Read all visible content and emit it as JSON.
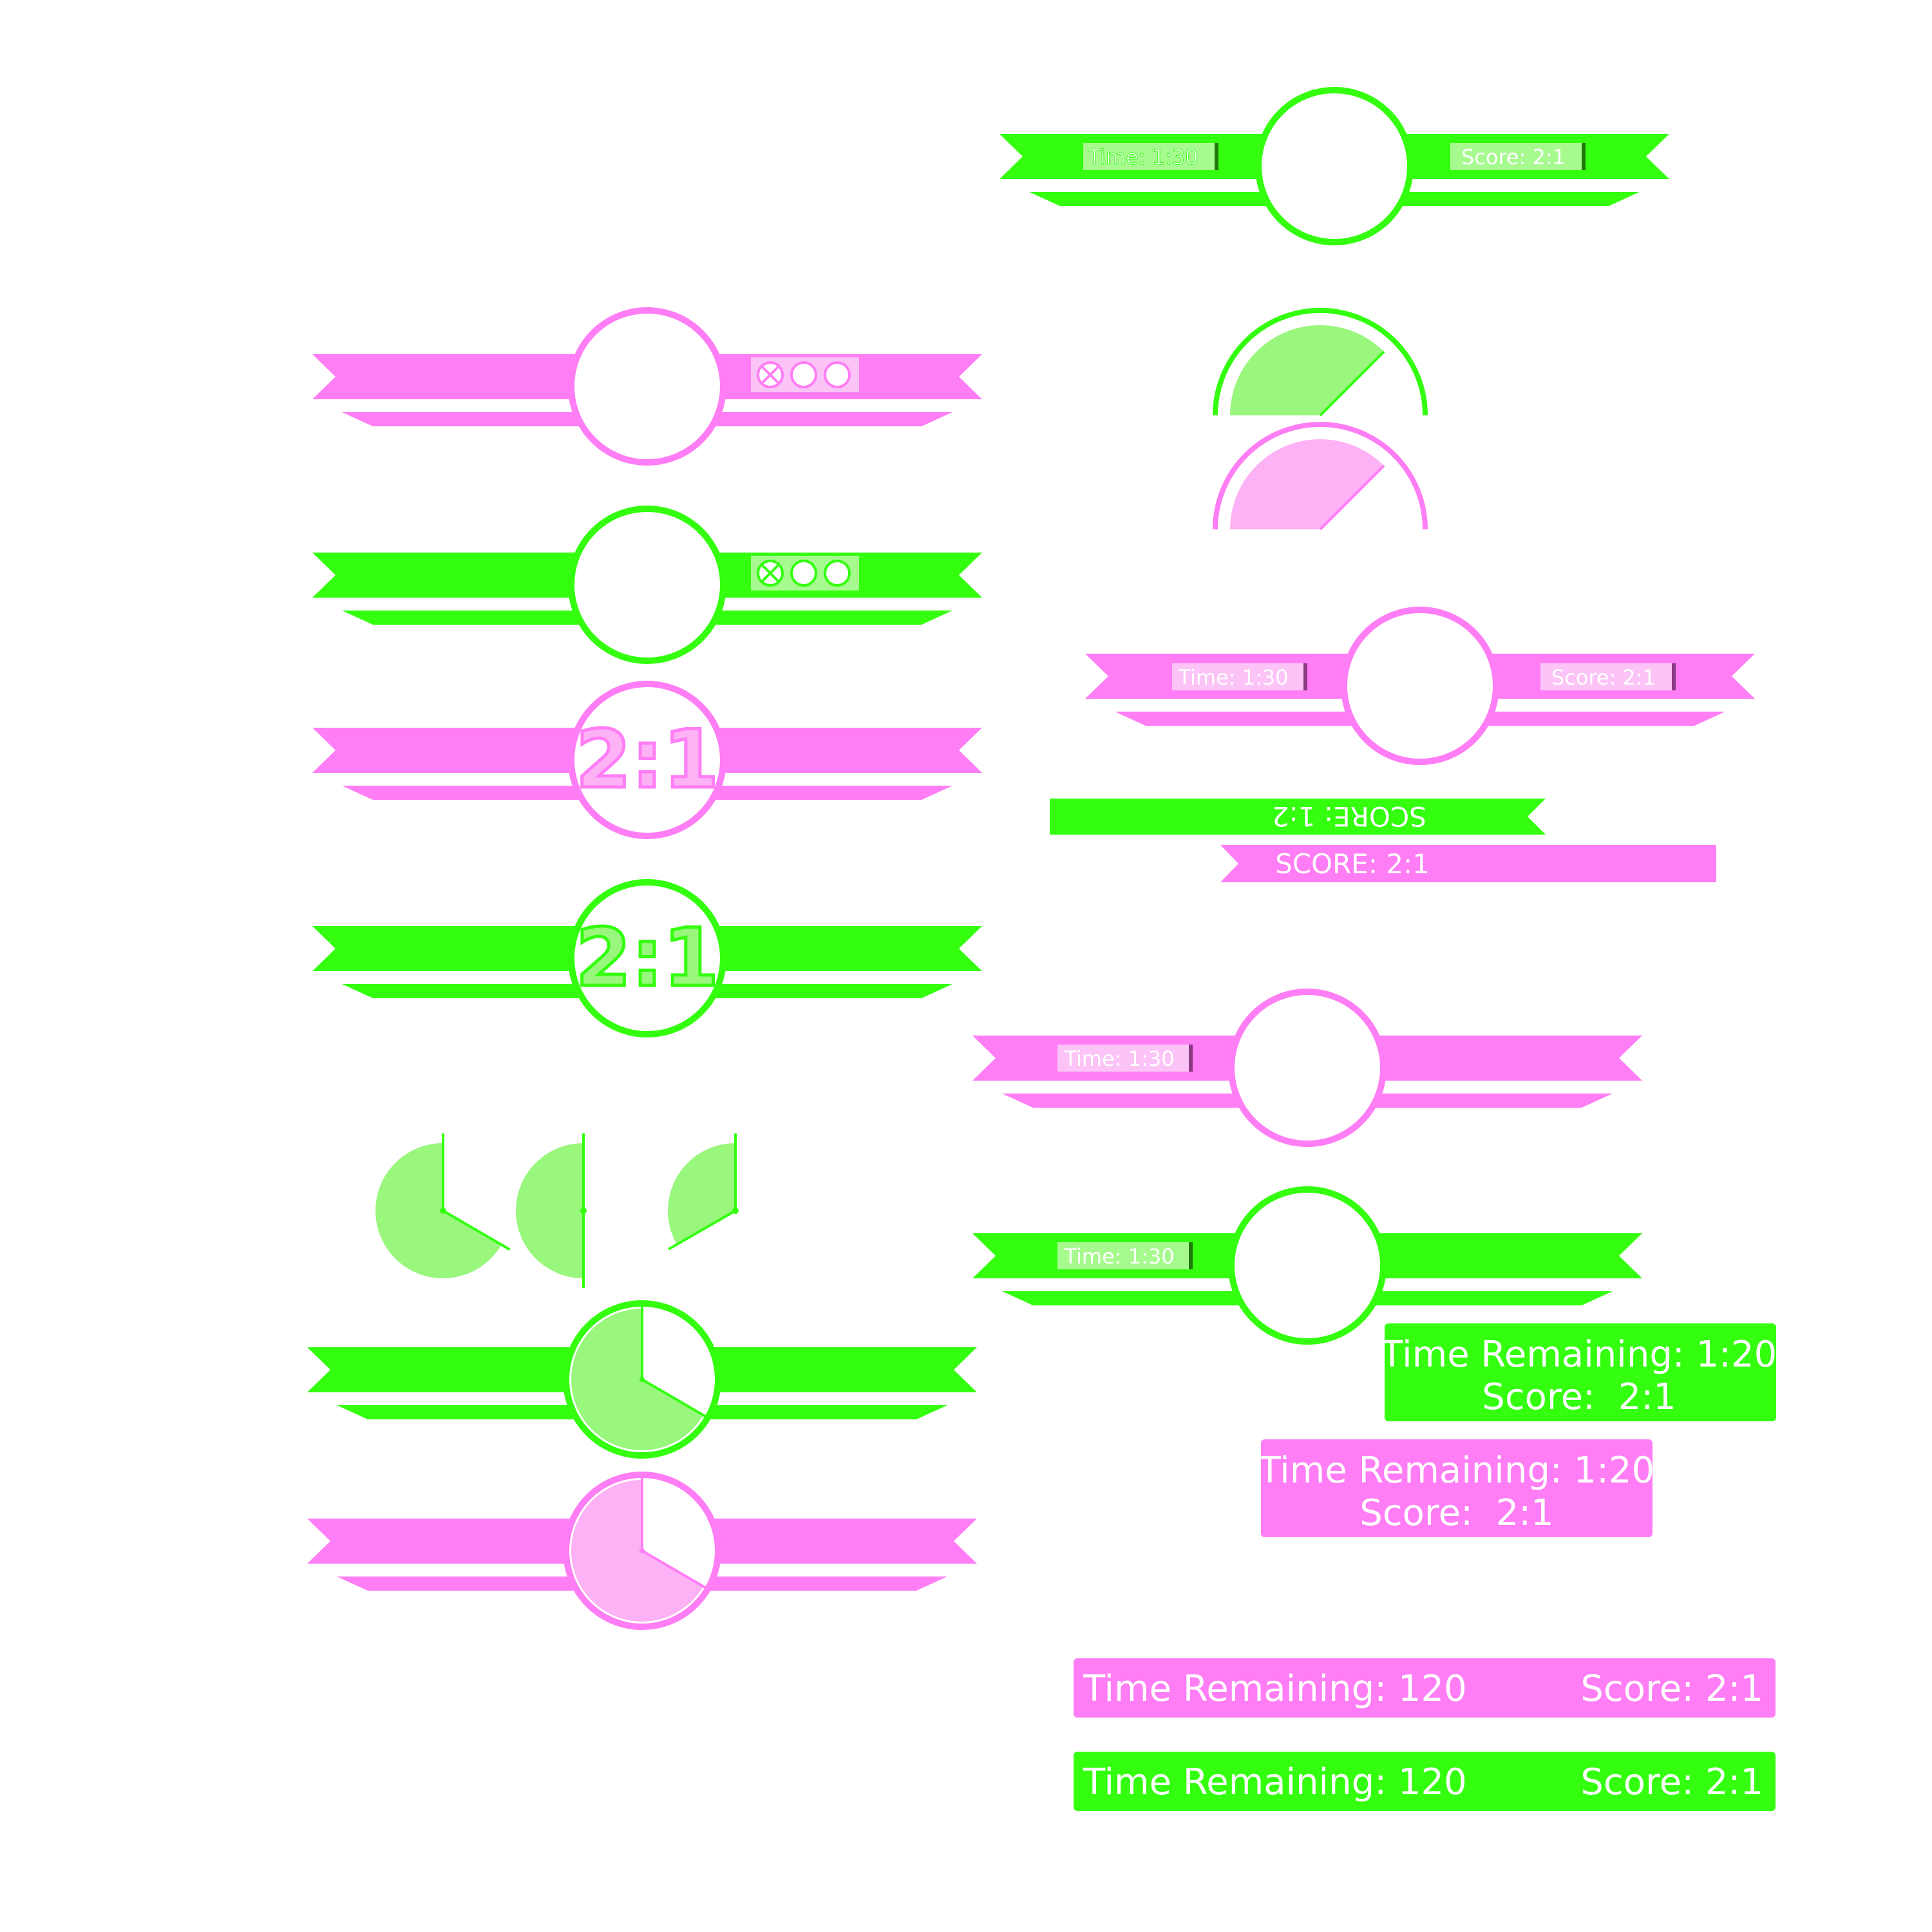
{
  "theme": {
    "green": "#33ff0f",
    "pink": "#ff7df5",
    "light_green": "#99f77d",
    "light_pink": "#fdb2f5",
    "pale_green": "#a6fa8e",
    "pale_pink": "#fcc3f7",
    "white": "#ffffff"
  },
  "score_ratio": "2:1",
  "time_tag": "Time: 1:30",
  "score_tag": "Score: 2:1",
  "score_upper": "SCORE: 2:1",
  "score_upper_flipped": "SCORE: 1:2",
  "time_remaining_clock": "Time Remaining: 1:20",
  "score_spaced": "Score:  2:1",
  "time_remaining_seconds": "Time Remaining: 120",
  "score_plain": "Score: 2:1",
  "lives": {
    "total": 3,
    "lost": 1
  },
  "timer_dial_fraction": 0.375,
  "pie_timer_fractions": [
    0.666,
    0.5,
    0.333
  ],
  "badge_timer_fraction": 0.666
}
